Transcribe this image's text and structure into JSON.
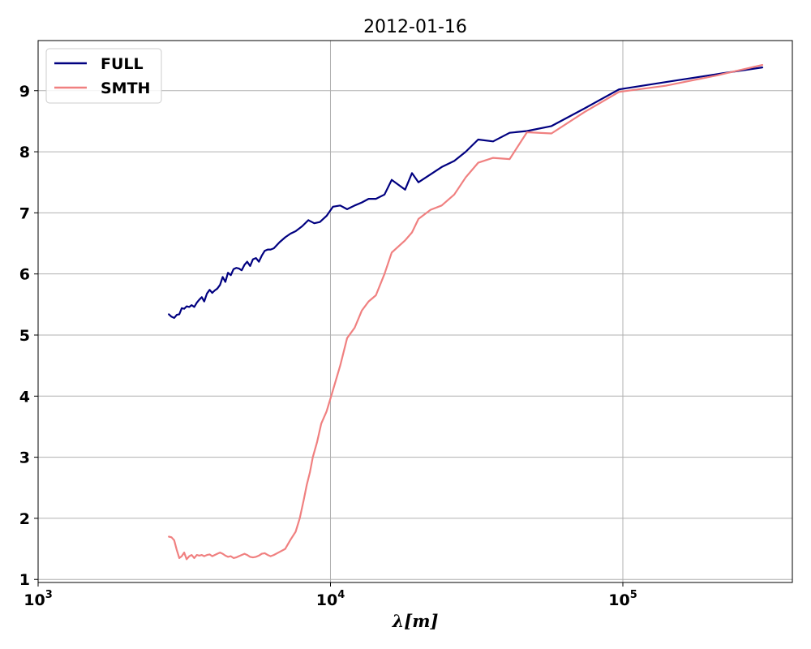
{
  "chart_data": {
    "type": "line",
    "title": "2012-01-16",
    "xlabel": "λ[m]",
    "ylabel": "",
    "xscale": "log",
    "xlim": [
      1000,
      380000
    ],
    "ylim": [
      0.95,
      9.82
    ],
    "grid": true,
    "legend_position": "top-left",
    "x_ticks": [
      {
        "value": 1000,
        "base": "10",
        "exp": "3"
      },
      {
        "value": 10000,
        "base": "10",
        "exp": "4"
      },
      {
        "value": 100000,
        "base": "10",
        "exp": "5"
      }
    ],
    "y_ticks": [
      1,
      2,
      3,
      4,
      5,
      6,
      7,
      8,
      9
    ],
    "series": [
      {
        "name": "FULL",
        "color": "#000080",
        "x": [
          2800,
          2860,
          2920,
          2980,
          3040,
          3100,
          3160,
          3220,
          3290,
          3350,
          3420,
          3490,
          3560,
          3630,
          3700,
          3780,
          3860,
          3940,
          4020,
          4100,
          4190,
          4280,
          4370,
          4460,
          4560,
          4660,
          4760,
          4860,
          4970,
          5080,
          5190,
          5310,
          5430,
          5560,
          5690,
          5820,
          5960,
          6100,
          6240,
          6400,
          6700,
          7000,
          7300,
          7600,
          8000,
          8400,
          8800,
          9200,
          9700,
          10200,
          10800,
          11400,
          12100,
          12800,
          13500,
          14300,
          15300,
          16200,
          18000,
          19000,
          20000,
          22000,
          24000,
          26500,
          29000,
          32000,
          36000,
          41000,
          47000,
          57000,
          74000,
          97000,
          140000,
          210000,
          300000
        ],
        "values": [
          5.34,
          5.3,
          5.28,
          5.33,
          5.34,
          5.44,
          5.43,
          5.47,
          5.46,
          5.49,
          5.46,
          5.53,
          5.58,
          5.62,
          5.55,
          5.68,
          5.74,
          5.69,
          5.73,
          5.76,
          5.82,
          5.95,
          5.87,
          6.02,
          5.98,
          6.08,
          6.1,
          6.09,
          6.06,
          6.15,
          6.2,
          6.13,
          6.24,
          6.26,
          6.2,
          6.3,
          6.38,
          6.4,
          6.4,
          6.42,
          6.52,
          6.6,
          6.66,
          6.7,
          6.78,
          6.88,
          6.83,
          6.85,
          6.95,
          7.1,
          7.12,
          7.06,
          7.12,
          7.17,
          7.23,
          7.23,
          7.3,
          7.54,
          7.38,
          7.65,
          7.5,
          7.63,
          7.75,
          7.85,
          8.0,
          8.2,
          8.17,
          8.31,
          8.34,
          8.42,
          8.71,
          9.02,
          9.14,
          9.27,
          9.38
        ]
      },
      {
        "name": "SMTH",
        "color": "#f08080",
        "x": [
          2800,
          2860,
          2920,
          2980,
          3040,
          3100,
          3160,
          3220,
          3290,
          3350,
          3420,
          3490,
          3560,
          3630,
          3700,
          3780,
          3860,
          3940,
          4020,
          4100,
          4190,
          4280,
          4370,
          4460,
          4560,
          4660,
          4760,
          4860,
          4970,
          5080,
          5190,
          5310,
          5430,
          5560,
          5690,
          5820,
          5960,
          6100,
          6240,
          6400,
          6700,
          7000,
          7300,
          7600,
          7850,
          8100,
          8300,
          8500,
          8700,
          9000,
          9300,
          9700,
          10200,
          10800,
          11400,
          12100,
          12800,
          13500,
          14300,
          15300,
          16200,
          18000,
          19000,
          20000,
          22000,
          24000,
          26500,
          29000,
          32000,
          36000,
          41000,
          47000,
          57000,
          74000,
          97000,
          140000,
          210000,
          300000
        ],
        "values": [
          1.7,
          1.69,
          1.64,
          1.48,
          1.35,
          1.38,
          1.44,
          1.33,
          1.38,
          1.4,
          1.35,
          1.4,
          1.39,
          1.4,
          1.38,
          1.4,
          1.41,
          1.38,
          1.4,
          1.42,
          1.44,
          1.42,
          1.39,
          1.37,
          1.38,
          1.35,
          1.36,
          1.38,
          1.4,
          1.42,
          1.4,
          1.37,
          1.36,
          1.37,
          1.39,
          1.42,
          1.43,
          1.4,
          1.38,
          1.4,
          1.45,
          1.5,
          1.65,
          1.78,
          2.0,
          2.3,
          2.55,
          2.75,
          3.0,
          3.25,
          3.55,
          3.75,
          4.1,
          4.5,
          4.95,
          5.12,
          5.4,
          5.55,
          5.65,
          6.0,
          6.35,
          6.55,
          6.68,
          6.9,
          7.05,
          7.12,
          7.3,
          7.58,
          7.82,
          7.9,
          7.88,
          8.32,
          8.3,
          8.65,
          8.98,
          9.08,
          9.25,
          9.42
        ]
      }
    ]
  }
}
